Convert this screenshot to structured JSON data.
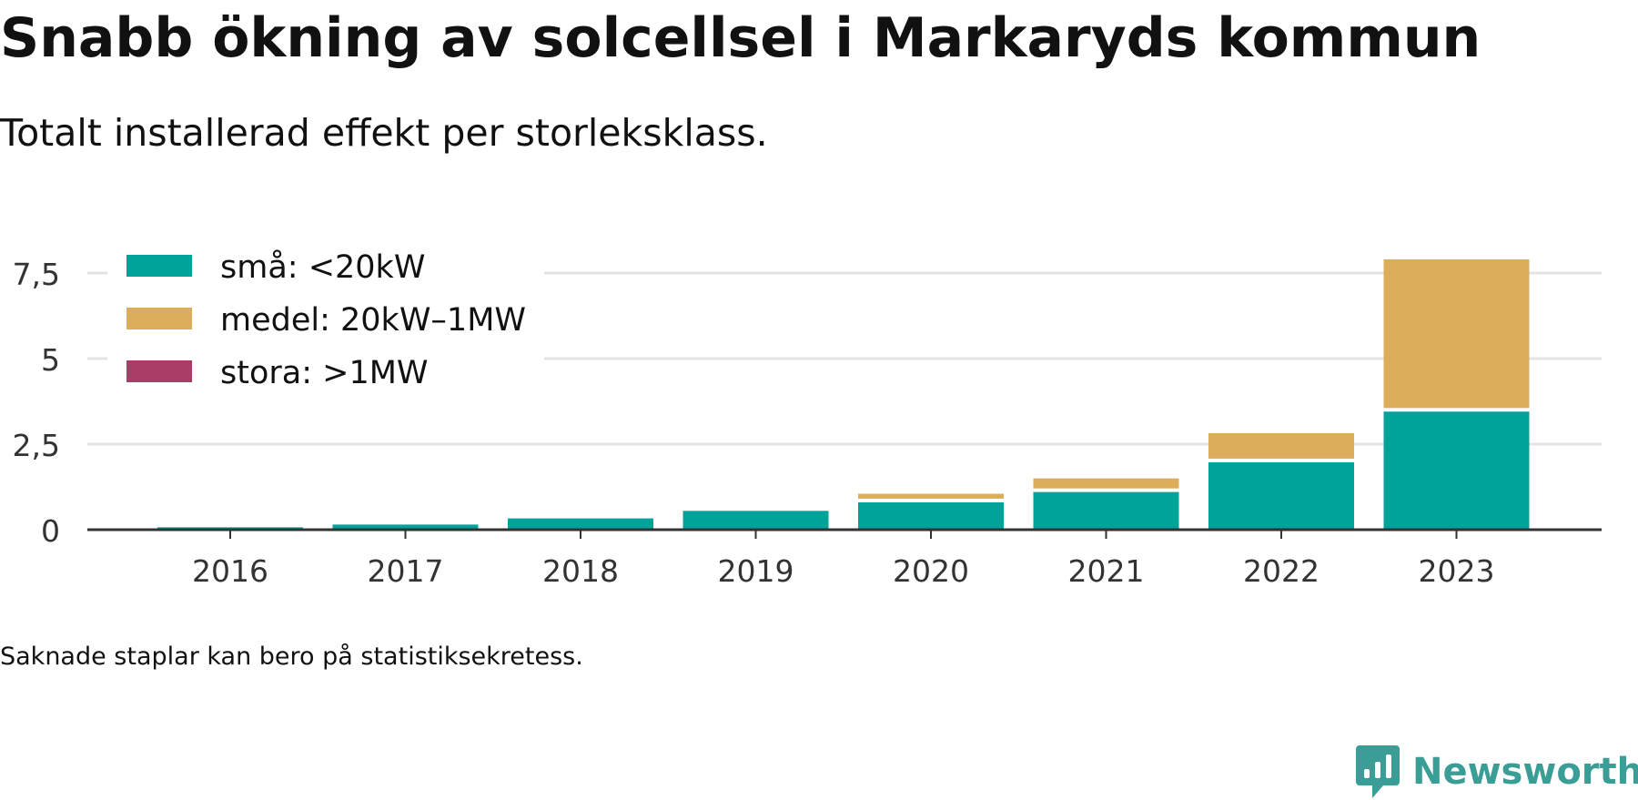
{
  "title": "Snabb ökning av solcellsel i Markaryds kommun",
  "subtitle": "Totalt installerad effekt per storleksklass.",
  "footnote": "Saknade staplar kan bero på statistiksekretess.",
  "brand": {
    "name": "Newsworthy",
    "color": "#3a9e96",
    "icon": "newsworthy-logo-icon"
  },
  "chart_data": {
    "type": "bar",
    "stacked": true,
    "categories": [
      "2016",
      "2017",
      "2018",
      "2019",
      "2020",
      "2021",
      "2022",
      "2023"
    ],
    "series": [
      {
        "name": "små: <20kW",
        "color": "#00a39a",
        "values": [
          0.07,
          0.15,
          0.33,
          0.55,
          0.8,
          1.1,
          1.97,
          3.45
        ]
      },
      {
        "name": "medel: 20kW–1MW",
        "color": "#dcad5b",
        "values": [
          0,
          0,
          0,
          0,
          0.25,
          0.4,
          0.85,
          4.45
        ]
      },
      {
        "name": "stora: >1MW",
        "color": "#aa3c68",
        "values": [
          0,
          0,
          0,
          0,
          0,
          0,
          0,
          0
        ]
      }
    ],
    "ylim": [
      0,
      8
    ],
    "yticks": [
      0,
      2.5,
      5,
      7.5
    ],
    "ytick_labels": [
      "0",
      "2,5",
      "5",
      "7,5"
    ],
    "xlabel": "",
    "ylabel": "",
    "grid": true,
    "legend_position": "top-left"
  }
}
